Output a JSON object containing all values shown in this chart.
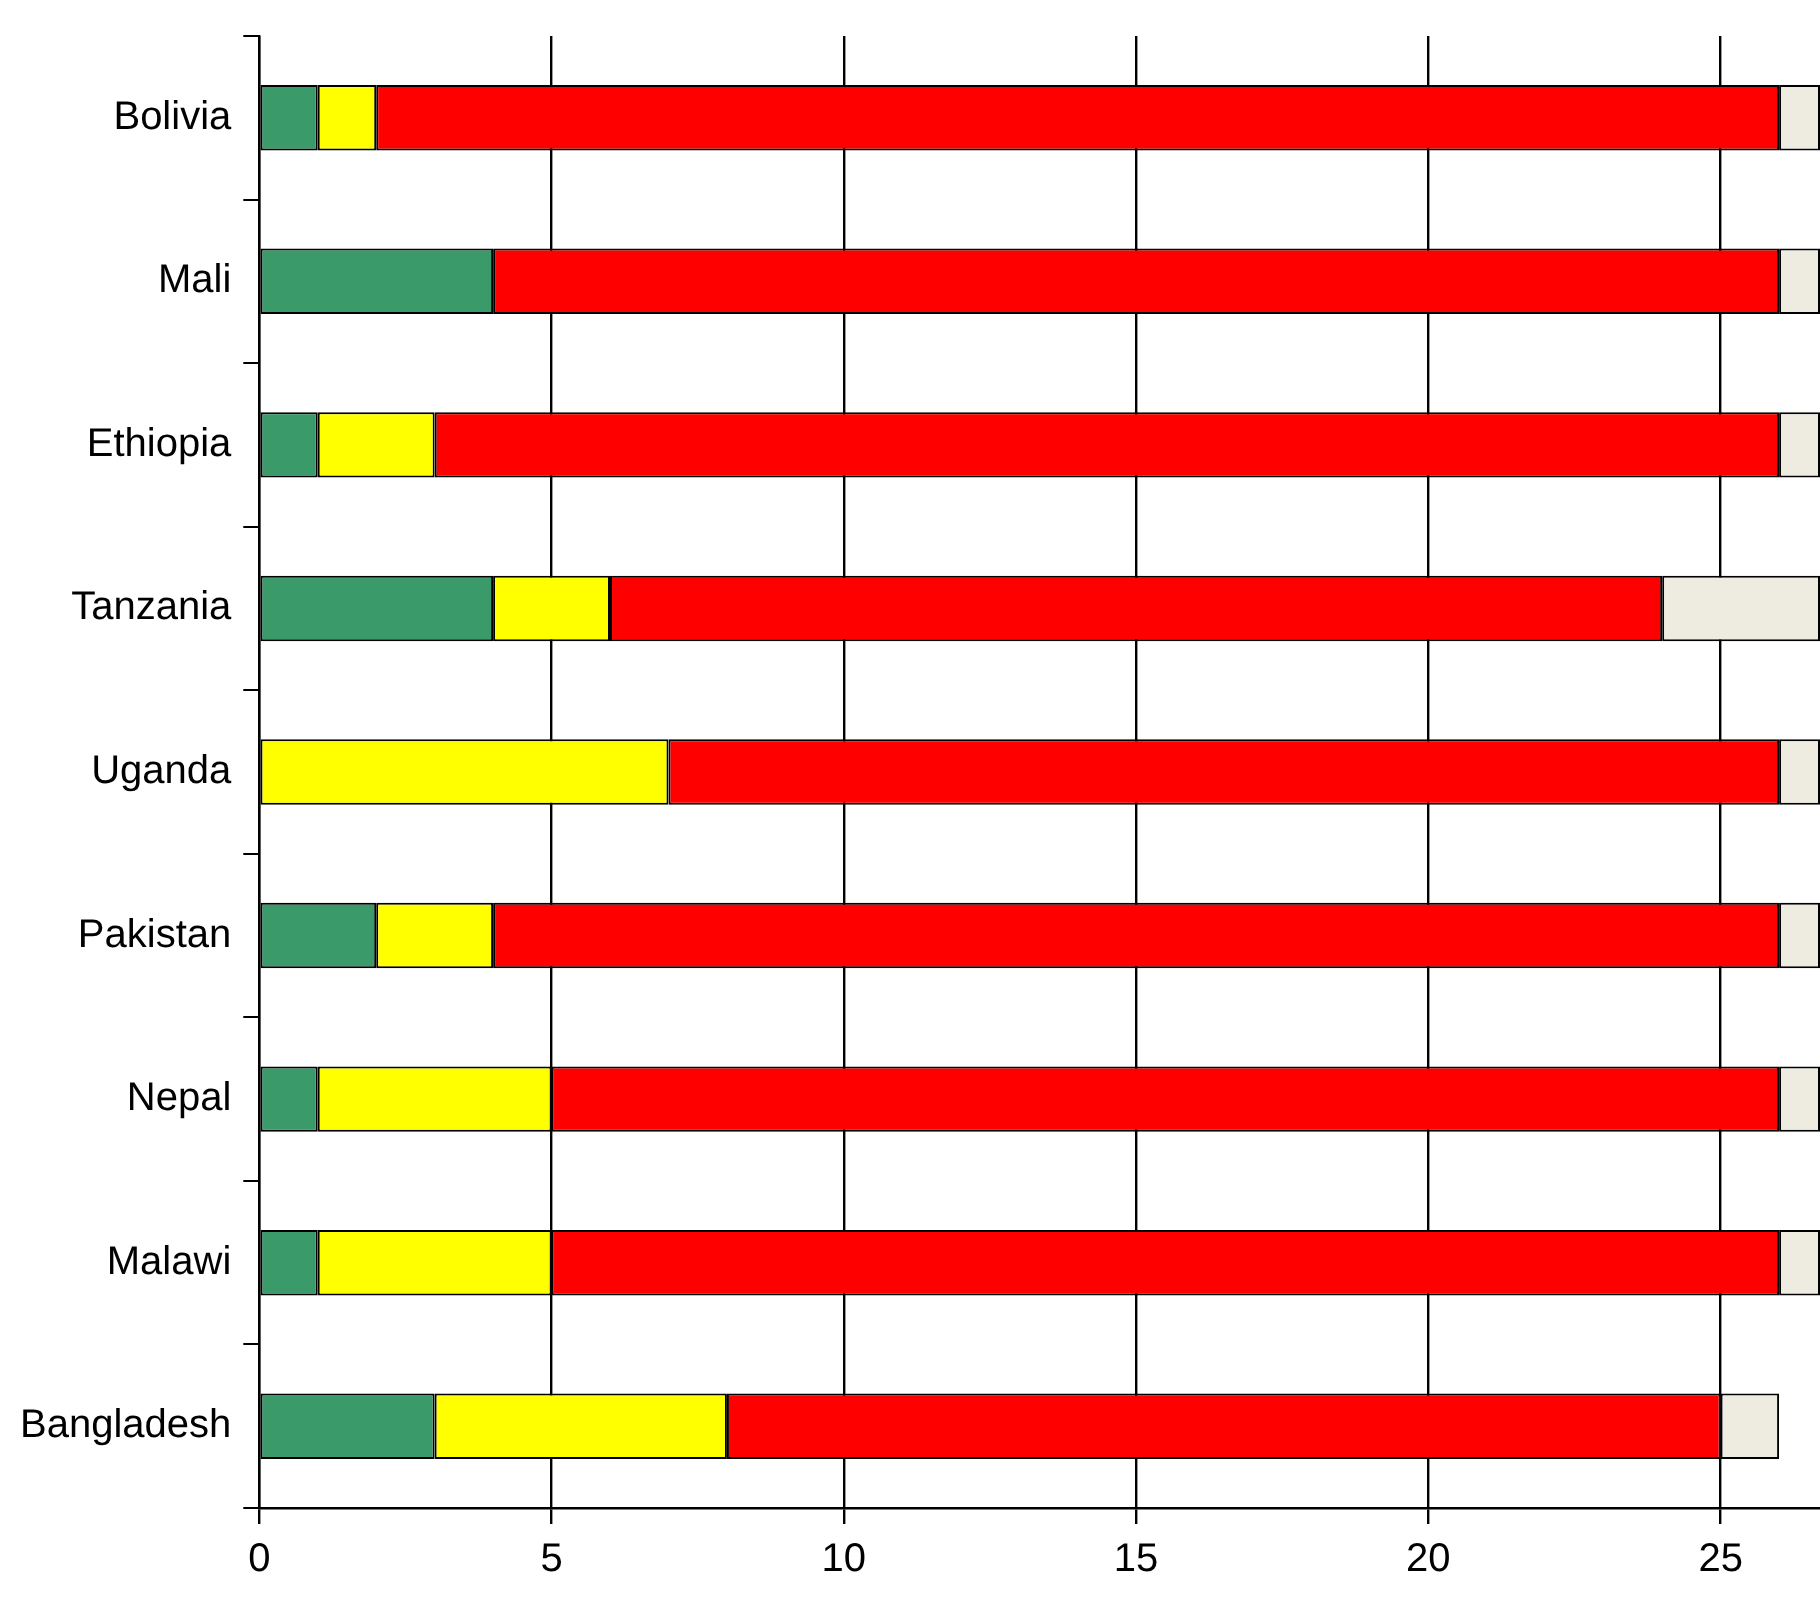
{
  "chart_data": {
    "type": "bar",
    "orientation": "horizontal",
    "stacked": true,
    "categories": [
      "Bolivia",
      "Mali",
      "Ethiopia",
      "Tanzania",
      "Uganda",
      "Pakistan",
      "Nepal",
      "Malawi",
      "Bangladesh"
    ],
    "series": [
      {
        "color": "#3a9a6a",
        "values": [
          1,
          4,
          1,
          4,
          0,
          2,
          1,
          1,
          3
        ]
      },
      {
        "color": "#ffff00",
        "values": [
          1,
          0,
          2,
          2,
          7,
          2,
          4,
          4,
          5
        ]
      },
      {
        "color": "#ff0000",
        "values": [
          24,
          22,
          23,
          18,
          19,
          22,
          21,
          21,
          17
        ]
      },
      {
        "color": "#eeebe0",
        "values": [
          0.7,
          0.7,
          0.7,
          2.7,
          0.7,
          0.7,
          0.7,
          0.7,
          1
        ]
      }
    ],
    "xlim": [
      0,
      26.7
    ],
    "xticks": [
      0,
      5,
      10,
      15,
      20,
      25
    ],
    "grid": "x",
    "legend": false
  }
}
